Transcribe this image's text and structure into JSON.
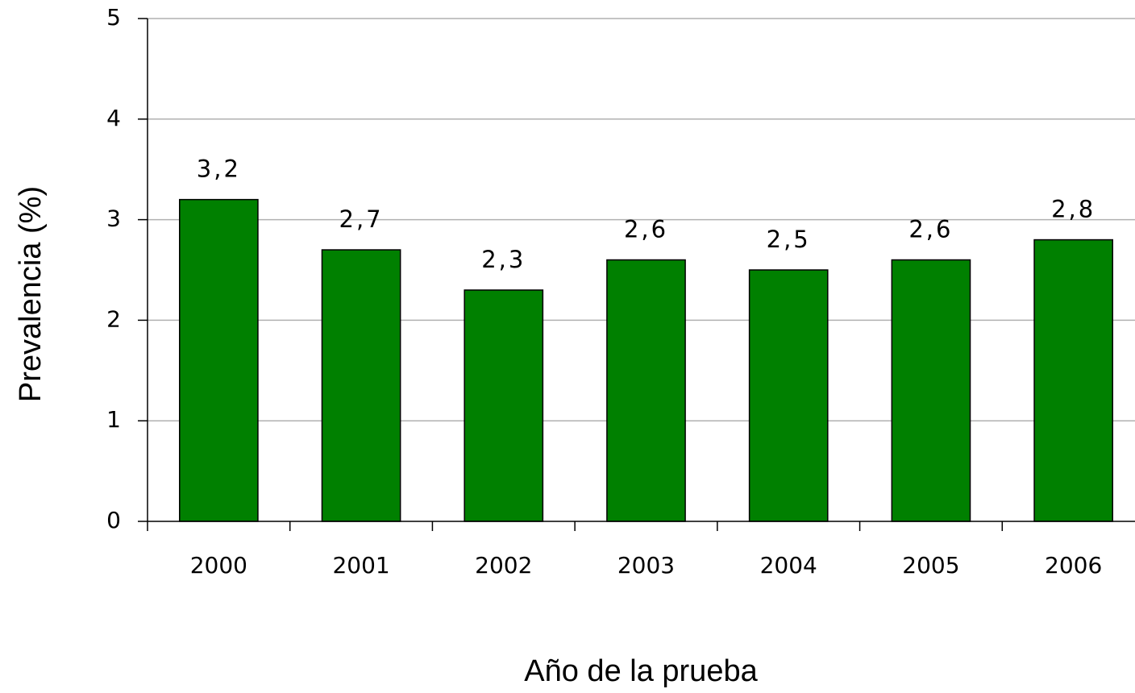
{
  "chart_data": {
    "type": "bar",
    "categories": [
      "2000",
      "2001",
      "2002",
      "2003",
      "2004",
      "2005",
      "2006"
    ],
    "values": [
      3.2,
      2.7,
      2.3,
      2.6,
      2.5,
      2.6,
      2.8
    ],
    "value_labels": [
      "3,2",
      "2,7",
      "2,3",
      "2,6",
      "2,5",
      "2,6",
      "2,8"
    ],
    "color": "#008000",
    "ylabel": "Prevalencia (%)",
    "xlabel": "Año de la prueba",
    "ylim": [
      0,
      5
    ],
    "yticks": [
      0,
      1,
      2,
      3,
      4,
      5
    ],
    "grid": true
  }
}
